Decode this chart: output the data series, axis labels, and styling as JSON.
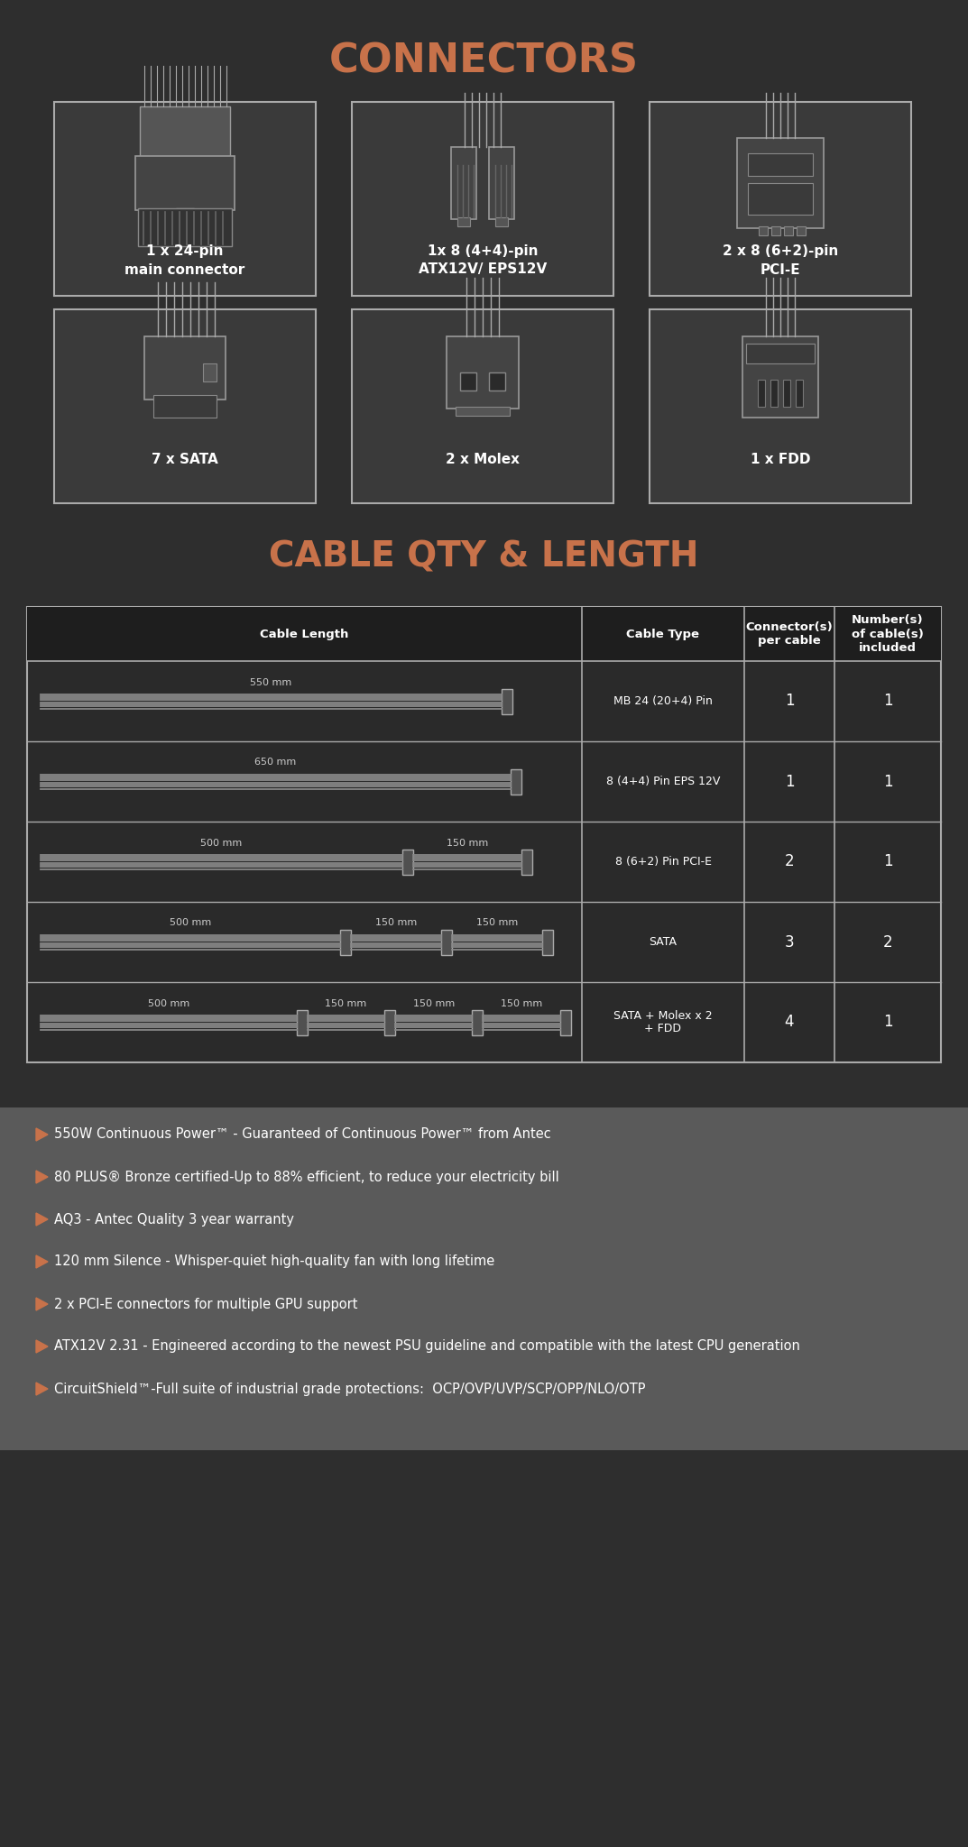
{
  "bg_color": "#2e2e2e",
  "dark_bg": "#333333",
  "section_bg": "#3a3a3a",
  "title_color": "#c8724a",
  "text_color": "#ffffff",
  "text_color_light": "#cccccc",
  "border_color": "#888888",
  "connector_border": "#aaaaaa",
  "wire_color": "#888888",
  "connectors_title": "CONNECTORS",
  "connectors": [
    {
      "label_line1": "1 x 24-pin",
      "label_line2": "main connector"
    },
    {
      "label_line1": "1x 8 (4+4)-pin",
      "label_line2": "ATX12V/ EPS12V"
    },
    {
      "label_line1": "2 x 8 (6+2)-pin",
      "label_line2": "PCI-E"
    },
    {
      "label_line1": "7 x SATA",
      "label_line2": ""
    },
    {
      "label_line1": "2 x Molex",
      "label_line2": ""
    },
    {
      "label_line1": "1 x FDD",
      "label_line2": ""
    }
  ],
  "cable_title": "CABLE QTY & LENGTH",
  "table_header": [
    "Cable Length",
    "Cable Type",
    "Connector(s)\nper cable",
    "Number(s)\nof cable(s)\nincluded"
  ],
  "table_rows": [
    {
      "lengths": [
        "550 mm"
      ],
      "cable_type": "MB 24 (20+4) Pin",
      "connectors_per": "1",
      "cables_included": "1"
    },
    {
      "lengths": [
        "650 mm"
      ],
      "cable_type": "8 (4+4) Pin EPS 12V",
      "connectors_per": "1",
      "cables_included": "1"
    },
    {
      "lengths": [
        "500 mm",
        "150 mm"
      ],
      "cable_type": "8 (6+2) Pin PCI-E",
      "connectors_per": "2",
      "cables_included": "1"
    },
    {
      "lengths": [
        "500 mm",
        "150 mm",
        "150 mm"
      ],
      "cable_type": "SATA",
      "connectors_per": "3",
      "cables_included": "2"
    },
    {
      "lengths": [
        "500 mm",
        "150 mm",
        "150 mm",
        "150 mm"
      ],
      "cable_type": "SATA + Molex x 2\n+ FDD",
      "connectors_per": "4",
      "cables_included": "1"
    }
  ],
  "footer_items": [
    "550W Continuous Power™ - Guaranteed of Continuous Power™ from Antec",
    "80 PLUS® Bronze certified-Up to 88% efficient, to reduce your electricity bill",
    "AQ3 - Antec Quality 3 year warranty",
    "120 mm Silence - Whisper-quiet high-quality fan with long lifetime",
    "2 x PCI-E connectors for multiple GPU support",
    "ATX12V 2.31 - Engineered according to the newest PSU guideline and compatible with the latest CPU generation",
    "CircuitShield™-Full suite of industrial grade protections:  OCP/OVP/UVP/SCP/OPP/NLO/OTP"
  ]
}
